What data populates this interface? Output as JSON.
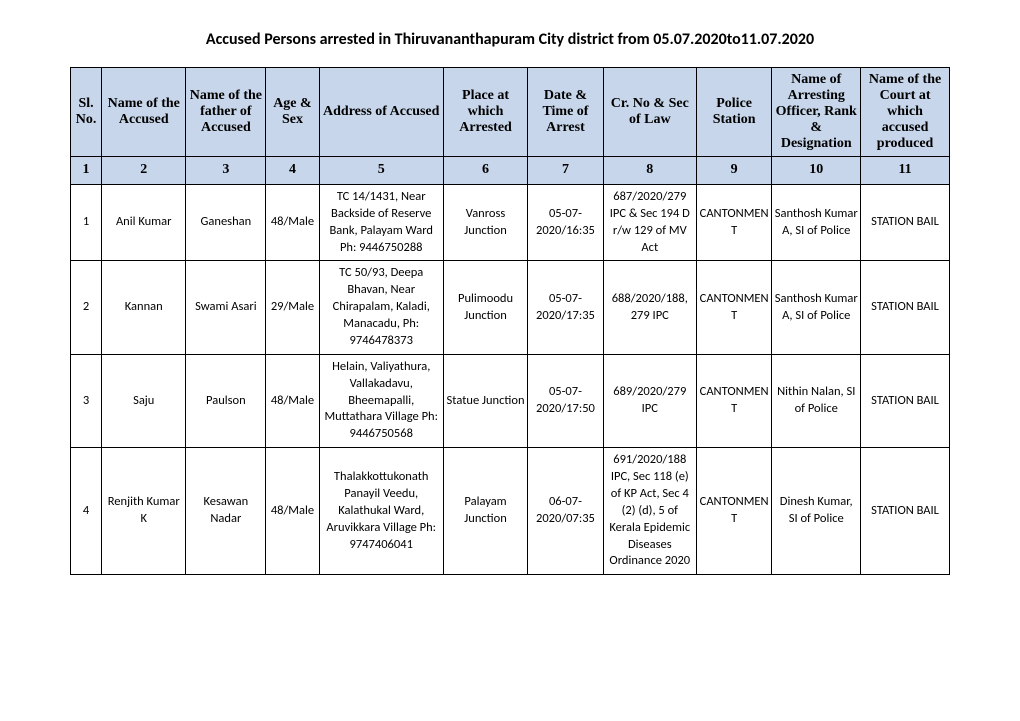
{
  "title": "Accused Persons arrested in  Thiruvananthapuram City  district from   05.07.2020to11.07.2020",
  "headers": [
    "Sl. No.",
    "Name of the Accused",
    "Name of the father of Accused",
    "Age & Sex",
    "Address of Accused",
    "Place at which Arrested",
    "Date & Time of Arrest",
    "Cr. No & Sec of Law",
    "Police Station",
    "Name of Arresting Officer, Rank & Designation",
    "Name of the Court at which accused produced"
  ],
  "numrow": [
    "1",
    "2",
    "3",
    "4",
    "5",
    "6",
    "7",
    "8",
    "9",
    "10",
    "11"
  ],
  "rows": [
    {
      "sl": "1",
      "name": "Anil Kumar",
      "father": "Ganeshan",
      "age": "48/Male",
      "address": "TC 14/1431, Near Backside of Reserve Bank, Palayam Ward Ph: 9446750288",
      "place": "Vanross Junction",
      "datetime": "05-07-2020/16:35",
      "crno": "687/2020/279 IPC & Sec 194 D r/w 129 of MV Act",
      "station": "CANTONMENT",
      "officer": "Santhosh Kumar A, SI of Police",
      "court": "STATION BAIL"
    },
    {
      "sl": "2",
      "name": "Kannan",
      "father": "Swami Asari",
      "age": "29/Male",
      "address": "TC 50/93, Deepa Bhavan, Near Chirapalam, Kaladi, Manacadu, Ph: 9746478373",
      "place": "Pulimoodu Junction",
      "datetime": "05-07-2020/17:35",
      "crno": "688/2020/188, 279 IPC",
      "station": "CANTONMENT",
      "officer": "Santhosh Kumar A, SI of Police",
      "court": "STATION BAIL"
    },
    {
      "sl": "3",
      "name": "Saju",
      "father": "Paulson",
      "age": "48/Male",
      "address": "Helain, Valiyathura, Vallakadavu, Bheemapalli, Muttathara Village Ph: 9446750568",
      "place": "Statue Junction",
      "datetime": "05-07-2020/17:50",
      "crno": "689/2020/279 IPC",
      "station": "CANTONMENT",
      "officer": "Nithin Nalan, SI of Police",
      "court": "STATION BAIL"
    },
    {
      "sl": "4",
      "name": "Renjith Kumar K",
      "father": "Kesawan Nadar",
      "age": "48/Male",
      "address": "Thalakkottukonath Panayil Veedu, Kalathukal Ward, Aruvikkara Village Ph: 9747406041",
      "place": "Palayam Junction",
      "datetime": "06-07-2020/07:35",
      "crno": "691/2020/188 IPC, Sec 118 (e) of KP Act, Sec 4 (2) (d), 5 of Kerala Epidemic Diseases Ordinance 2020",
      "station": "CANTONMENT",
      "officer": "Dinesh Kumar, SI of Police",
      "court": "STATION BAIL"
    }
  ]
}
